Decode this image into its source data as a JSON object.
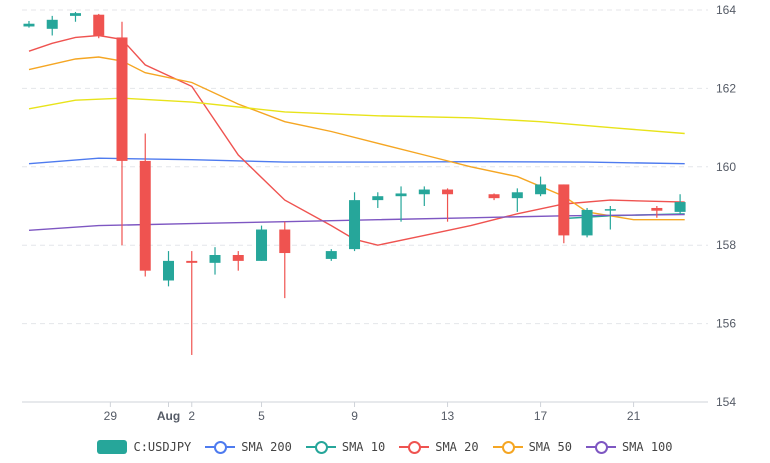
{
  "chart_data": {
    "type": "candlestick",
    "y_axis": {
      "ticks": [
        "164",
        "162",
        "160",
        "158",
        "156",
        "154"
      ],
      "ylim": [
        154,
        164
      ],
      "position": "right",
      "grid": "dashed"
    },
    "x_axis": {
      "ticks": [
        {
          "label": "29",
          "bold": false,
          "day": 29.5
        },
        {
          "label": "Aug",
          "bold": true,
          "day": 32.0
        },
        {
          "label": "2",
          "bold": false,
          "day": 33.0
        },
        {
          "label": "5",
          "bold": false,
          "day": 36.0
        },
        {
          "label": "9",
          "bold": false,
          "day": 40.0
        },
        {
          "label": "13",
          "bold": false,
          "day": 44.0
        },
        {
          "label": "17",
          "bold": false,
          "day": 48.0
        },
        {
          "label": "21",
          "bold": false,
          "day": 52.0
        }
      ],
      "xlim": [
        25.7,
        55.2
      ]
    },
    "legend_position": "bottom-center",
    "legend": [
      {
        "label": "C:USDJPY",
        "color": "#26a69a",
        "kind": "box"
      },
      {
        "label": "SMA 200",
        "color": "#4e7bef",
        "kind": "line"
      },
      {
        "label": "SMA 10",
        "color": "#26a69a",
        "kind": "line"
      },
      {
        "label": "SMA 20",
        "color": "#ef5350",
        "kind": "line"
      },
      {
        "label": "SMA 50",
        "color": "#f5a623",
        "kind": "line"
      },
      {
        "label": "SMA 100",
        "color": "#7e57c2",
        "kind": "line"
      }
    ],
    "colors": {
      "up": "#26a69a",
      "down": "#ef5350"
    },
    "candles": [
      {
        "day": 26.0,
        "open": 163.58,
        "high": 163.72,
        "low": 163.55,
        "close": 163.65
      },
      {
        "day": 27.0,
        "open": 163.52,
        "high": 163.85,
        "low": 163.35,
        "close": 163.75
      },
      {
        "day": 28.0,
        "open": 163.85,
        "high": 163.95,
        "low": 163.7,
        "close": 163.92
      },
      {
        "day": 29.0,
        "open": 163.88,
        "high": 163.9,
        "low": 163.28,
        "close": 163.35
      },
      {
        "day": 30.0,
        "open": 163.3,
        "high": 163.7,
        "low": 158.0,
        "close": 160.15
      },
      {
        "day": 31.0,
        "open": 160.15,
        "high": 160.85,
        "low": 157.2,
        "close": 157.35
      },
      {
        "day": 32.0,
        "open": 157.1,
        "high": 157.85,
        "low": 156.95,
        "close": 157.6
      },
      {
        "day": 33.0,
        "open": 157.6,
        "high": 157.85,
        "low": 155.2,
        "close": 157.55
      },
      {
        "day": 34.0,
        "open": 157.55,
        "high": 157.95,
        "low": 157.25,
        "close": 157.75
      },
      {
        "day": 35.0,
        "open": 157.75,
        "high": 157.85,
        "low": 157.35,
        "close": 157.6
      },
      {
        "day": 36.0,
        "open": 157.6,
        "high": 158.5,
        "low": 157.6,
        "close": 158.4
      },
      {
        "day": 37.0,
        "open": 158.4,
        "high": 158.6,
        "low": 156.65,
        "close": 157.8
      },
      {
        "day": 39.0,
        "open": 157.65,
        "high": 157.9,
        "low": 157.6,
        "close": 157.85
      },
      {
        "day": 40.0,
        "open": 157.9,
        "high": 159.35,
        "low": 157.85,
        "close": 159.15
      },
      {
        "day": 41.0,
        "open": 159.15,
        "high": 159.35,
        "low": 158.95,
        "close": 159.25
      },
      {
        "day": 42.0,
        "open": 159.25,
        "high": 159.5,
        "low": 158.6,
        "close": 159.32
      },
      {
        "day": 43.0,
        "open": 159.3,
        "high": 159.5,
        "low": 159.0,
        "close": 159.42
      },
      {
        "day": 44.0,
        "open": 159.42,
        "high": 159.45,
        "low": 158.6,
        "close": 159.3
      },
      {
        "day": 46.0,
        "open": 159.3,
        "high": 159.32,
        "low": 159.15,
        "close": 159.2
      },
      {
        "day": 47.0,
        "open": 159.2,
        "high": 159.45,
        "low": 158.85,
        "close": 159.35
      },
      {
        "day": 48.0,
        "open": 159.3,
        "high": 159.75,
        "low": 159.25,
        "close": 159.55
      },
      {
        "day": 49.0,
        "open": 159.55,
        "high": 159.55,
        "low": 158.05,
        "close": 158.25
      },
      {
        "day": 50.0,
        "open": 158.25,
        "high": 158.95,
        "low": 158.2,
        "close": 158.9
      },
      {
        "day": 51.0,
        "open": 158.9,
        "high": 159.0,
        "low": 158.4,
        "close": 158.92
      },
      {
        "day": 53.0,
        "open": 158.95,
        "high": 159.0,
        "low": 158.7,
        "close": 158.88
      },
      {
        "day": 54.0,
        "open": 158.85,
        "high": 159.3,
        "low": 158.8,
        "close": 159.1
      }
    ],
    "series": [
      {
        "name": "SMA 200",
        "color": "#4e7bef",
        "x": [
          26,
          29,
          33,
          37,
          41,
          45,
          50,
          54.2
        ],
        "y": [
          160.08,
          160.22,
          160.18,
          160.12,
          160.12,
          160.13,
          160.12,
          160.08
        ]
      },
      {
        "name": "SMA 10",
        "color": "#26a69a",
        "x": [
          49,
          51,
          54.2
        ],
        "y": [
          158.68,
          158.75,
          158.8
        ]
      },
      {
        "name": "SMA 20",
        "color": "#ef5350",
        "x": [
          26,
          27,
          28,
          29,
          30,
          31,
          33,
          35,
          37,
          39,
          40,
          41,
          43,
          45,
          47,
          49,
          51,
          54.2
        ],
        "y": [
          162.95,
          163.15,
          163.3,
          163.35,
          163.25,
          162.6,
          162.05,
          160.3,
          159.15,
          158.5,
          158.15,
          158.0,
          158.25,
          158.5,
          158.8,
          159.05,
          159.15,
          159.1
        ]
      },
      {
        "name": "SMA 50",
        "color": "#f5a623",
        "x": [
          26,
          28,
          29,
          30,
          31,
          33,
          35,
          37,
          39,
          41,
          43,
          45,
          47,
          49,
          50,
          52,
          54.2
        ],
        "y": [
          162.48,
          162.75,
          162.8,
          162.7,
          162.4,
          162.15,
          161.6,
          161.15,
          160.9,
          160.6,
          160.3,
          160.0,
          159.75,
          159.25,
          158.85,
          158.65,
          158.65
        ]
      },
      {
        "name": "SMA 100",
        "color": "#e8e31a",
        "x": [
          26,
          28,
          30,
          33,
          37,
          41,
          45,
          48,
          51,
          54.2
        ],
        "y": [
          161.48,
          161.7,
          161.75,
          161.65,
          161.4,
          161.3,
          161.25,
          161.15,
          161.0,
          160.85
        ]
      },
      {
        "name": "SMA 100",
        "color": "#7e57c2",
        "x": [
          26,
          29,
          33,
          37,
          41,
          45,
          49,
          54.2
        ],
        "y": [
          158.38,
          158.5,
          158.55,
          158.6,
          158.65,
          158.7,
          158.75,
          158.78
        ]
      }
    ]
  }
}
